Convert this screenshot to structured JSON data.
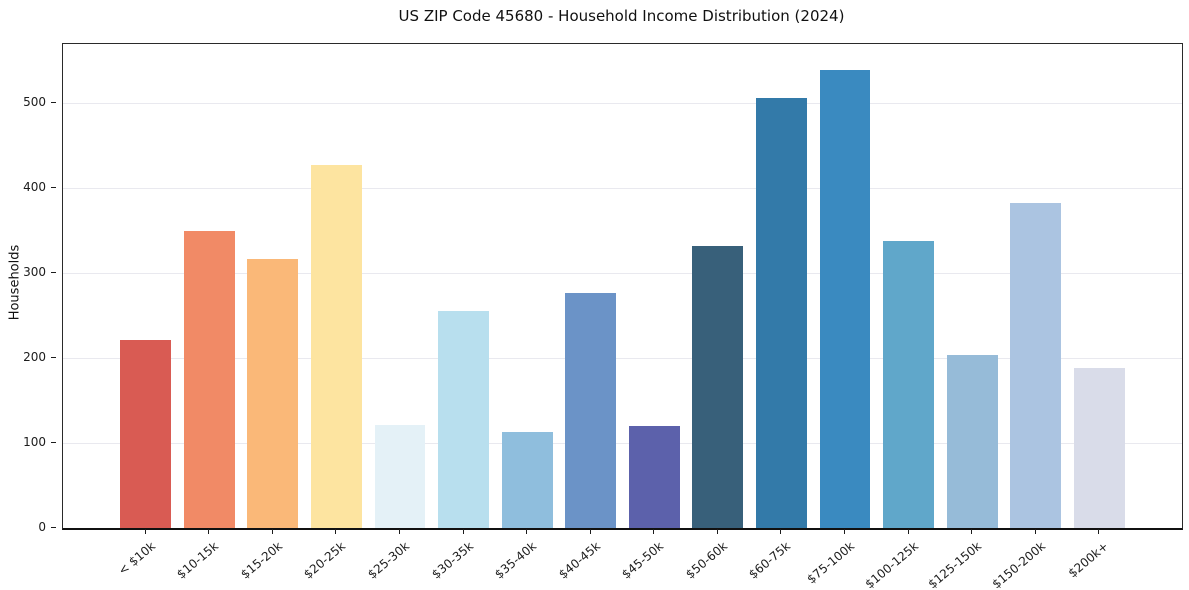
{
  "chart_data": {
    "type": "bar",
    "title": "US ZIP Code 45680 - Household Income Distribution (2024)",
    "xlabel": "",
    "ylabel": "Households",
    "categories": [
      "< $10k",
      "$10-15k",
      "$15-20k",
      "$20-25k",
      "$25-30k",
      "$30-35k",
      "$35-40k",
      "$40-45k",
      "$45-50k",
      "$50-60k",
      "$60-75k",
      "$75-100k",
      "$100-125k",
      "$125-150k",
      "$150-200k",
      "$200k+"
    ],
    "values": [
      221,
      350,
      317,
      427,
      121,
      256,
      113,
      277,
      120,
      332,
      506,
      540,
      338,
      204,
      383,
      188
    ],
    "bar_colors": [
      "#d95b53",
      "#f18a66",
      "#fab878",
      "#fde4a0",
      "#e4f1f7",
      "#b8dfee",
      "#8fbedd",
      "#6b93c7",
      "#5c61ab",
      "#38607a",
      "#337aa9",
      "#3a8ac0",
      "#60a7ca",
      "#96bbd8",
      "#abc4e1",
      "#d9dce9"
    ],
    "yticks": [
      0,
      100,
      200,
      300,
      400,
      500
    ],
    "ylim": [
      0,
      570
    ],
    "grid": "horizontal",
    "gridline_color": "#e9e9ef",
    "background_color": "#ffffff",
    "legend": "none",
    "x_tick_label_rotation_deg": -40
  }
}
